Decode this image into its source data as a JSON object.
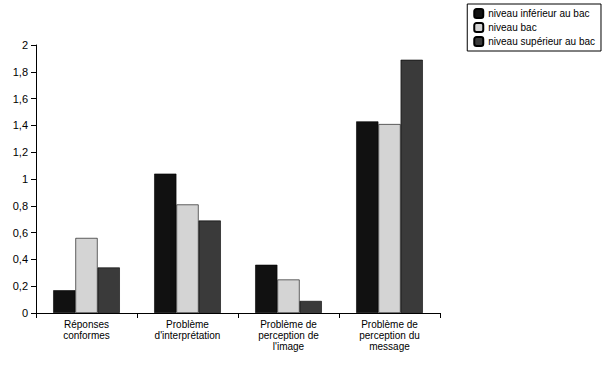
{
  "chart_data": {
    "type": "bar",
    "categories": [
      "Réponses\nconformes",
      "Problème\nd'interprétation",
      "Problème de\nperception de\nl'image",
      "Problème de\nperception du\nmessage"
    ],
    "series": [
      {
        "name": "niveau inférieur au bac",
        "color": "#111111",
        "values": [
          0.17,
          1.04,
          0.36,
          1.43
        ]
      },
      {
        "name": "niveau bac",
        "color": "#d4d4d4",
        "values": [
          0.56,
          0.81,
          0.25,
          1.41
        ]
      },
      {
        "name": "niveau supérieur au bac",
        "color": "#3a3a3a",
        "values": [
          0.34,
          0.69,
          0.09,
          1.89
        ]
      }
    ],
    "ylim": [
      0,
      2
    ],
    "yticks": [
      0,
      {
        "value": 0.2,
        "label": "0,2"
      },
      {
        "value": 0.4,
        "label": "0,4"
      },
      {
        "value": 0.6,
        "label": "0,6"
      },
      {
        "value": 0.8,
        "label": "0,8"
      },
      1,
      {
        "value": 1.2,
        "label": "1,2"
      },
      {
        "value": 1.4,
        "label": "1,4"
      },
      {
        "value": 1.6,
        "label": "1,6"
      },
      {
        "value": 1.8,
        "label": "1,8"
      },
      2
    ],
    "grid": false,
    "legend": "top-right"
  }
}
